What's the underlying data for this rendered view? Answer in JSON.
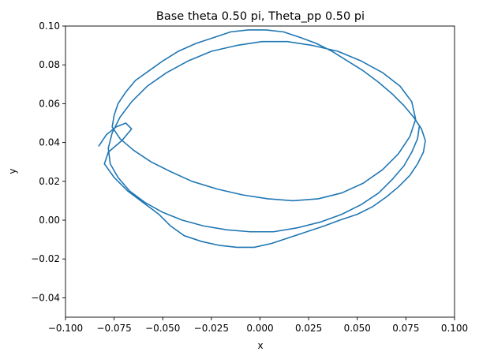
{
  "chart_data": {
    "type": "line",
    "title": "Base theta 0.50 pi, Theta_pp 0.50 pi",
    "xlabel": "x",
    "ylabel": "y",
    "xlim": [
      -0.1,
      0.1
    ],
    "ylim": [
      -0.05,
      0.1
    ],
    "x_ticks": [
      -0.1,
      -0.075,
      -0.05,
      -0.025,
      0.0,
      0.025,
      0.05,
      0.075,
      0.1
    ],
    "x_tick_labels": [
      "−0.100",
      "−0.075",
      "−0.050",
      "−0.025",
      "0.000",
      "0.025",
      "0.050",
      "0.075",
      "0.100"
    ],
    "y_ticks": [
      -0.04,
      -0.02,
      0.0,
      0.02,
      0.04,
      0.06,
      0.08,
      0.1
    ],
    "y_tick_labels": [
      "−0.04",
      "−0.02",
      "0.00",
      "0.02",
      "0.04",
      "0.06",
      "0.08",
      "0.10"
    ],
    "grid": false,
    "series": [
      {
        "color": "#1f77b4",
        "x": [
          -0.083,
          -0.079,
          -0.074,
          -0.069,
          -0.066,
          -0.071,
          -0.078,
          -0.08,
          -0.075,
          -0.068,
          -0.06,
          -0.052,
          -0.046,
          -0.039,
          -0.03,
          -0.021,
          -0.012,
          -0.003,
          0.006,
          0.015,
          0.024,
          0.033,
          0.041,
          0.05,
          0.058,
          0.065,
          0.071,
          0.077,
          0.081,
          0.084,
          0.085,
          0.083,
          0.079,
          0.074,
          0.068,
          0.061,
          0.053,
          0.045,
          0.037,
          0.029,
          0.021,
          0.012,
          0.003,
          -0.006,
          -0.015,
          -0.024,
          -0.033,
          -0.042,
          -0.05,
          -0.057,
          -0.064,
          -0.069,
          -0.073,
          -0.075,
          -0.076,
          -0.072,
          -0.065,
          -0.056,
          -0.046,
          -0.035,
          -0.022,
          -0.009,
          0.004,
          0.017,
          0.03,
          0.042,
          0.053,
          0.063,
          0.071,
          0.077,
          0.08,
          0.078,
          0.072,
          0.063,
          0.052,
          0.04,
          0.027,
          0.014,
          0.001,
          -0.012,
          -0.025,
          -0.037,
          -0.048,
          -0.058,
          -0.066,
          -0.072,
          -0.076,
          -0.078,
          -0.077,
          -0.073,
          -0.067,
          -0.059,
          -0.05,
          -0.04,
          -0.029,
          -0.017,
          -0.005,
          0.007,
          0.019,
          0.031,
          0.042,
          0.052,
          0.061,
          0.068,
          0.074,
          0.078,
          0.081,
          0.082
        ],
        "y": [
          0.038,
          0.044,
          0.048,
          0.05,
          0.047,
          0.041,
          0.035,
          0.029,
          0.022,
          0.015,
          0.009,
          0.003,
          -0.003,
          -0.008,
          -0.011,
          -0.013,
          -0.014,
          -0.014,
          -0.012,
          -0.009,
          -0.006,
          -0.003,
          0.0,
          0.003,
          0.007,
          0.012,
          0.017,
          0.023,
          0.029,
          0.035,
          0.041,
          0.047,
          0.053,
          0.059,
          0.065,
          0.071,
          0.077,
          0.082,
          0.087,
          0.091,
          0.094,
          0.097,
          0.098,
          0.098,
          0.097,
          0.094,
          0.091,
          0.087,
          0.082,
          0.077,
          0.072,
          0.066,
          0.06,
          0.054,
          0.048,
          0.042,
          0.036,
          0.03,
          0.025,
          0.02,
          0.016,
          0.013,
          0.011,
          0.01,
          0.011,
          0.014,
          0.019,
          0.026,
          0.034,
          0.043,
          0.052,
          0.061,
          0.069,
          0.076,
          0.082,
          0.087,
          0.09,
          0.092,
          0.092,
          0.09,
          0.087,
          0.082,
          0.076,
          0.069,
          0.061,
          0.053,
          0.045,
          0.037,
          0.029,
          0.022,
          0.015,
          0.009,
          0.004,
          0.0,
          -0.003,
          -0.005,
          -0.006,
          -0.006,
          -0.004,
          -0.001,
          0.003,
          0.008,
          0.014,
          0.021,
          0.028,
          0.035,
          0.042,
          0.049
        ]
      }
    ]
  }
}
